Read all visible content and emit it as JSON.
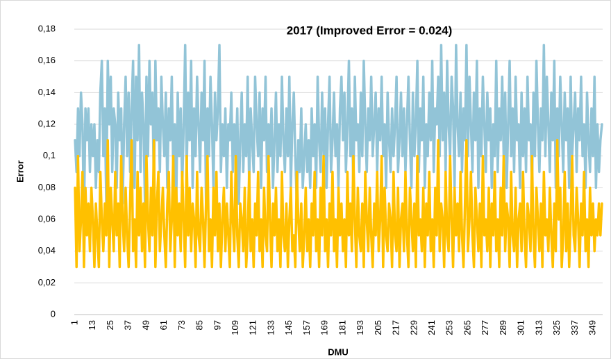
{
  "chart_data": {
    "type": "line",
    "title": "2017 (Improved Error = 0.024)",
    "x_label": "DMU",
    "y_label": "Error",
    "ylim": [
      0,
      0.18
    ],
    "yticks": [
      0,
      {
        "value": 0.02,
        "label": "0,02"
      },
      {
        "value": 0.04,
        "label": "0,04"
      },
      {
        "value": 0.06,
        "label": "0,06"
      },
      {
        "value": 0.08,
        "label": "0,08"
      },
      {
        "value": 0.1,
        "label": "0,1"
      },
      {
        "value": 0.12,
        "label": "0,12"
      },
      {
        "value": 0.14,
        "label": "0,14"
      },
      {
        "value": 0.16,
        "label": "0,16"
      },
      {
        "value": 0.18,
        "label": "0,18"
      }
    ],
    "grid": true,
    "categories": [
      1,
      null,
      null,
      null,
      null,
      null,
      null,
      null,
      null,
      null,
      null,
      null,
      13,
      null,
      null,
      null,
      null,
      null,
      null,
      null,
      null,
      null,
      null,
      null,
      25,
      null,
      null,
      null,
      null,
      null,
      null,
      null,
      null,
      null,
      null,
      null,
      37,
      null,
      null,
      null,
      null,
      null,
      null,
      null,
      null,
      null,
      null,
      null,
      49,
      null,
      null,
      null,
      null,
      null,
      null,
      null,
      null,
      null,
      null,
      null,
      61,
      null,
      null,
      null,
      null,
      null,
      null,
      null,
      null,
      null,
      null,
      null,
      73,
      null,
      null,
      null,
      null,
      null,
      null,
      null,
      null,
      null,
      null,
      null,
      85,
      null,
      null,
      null,
      null,
      null,
      null,
      null,
      null,
      null,
      null,
      null,
      97,
      null,
      null,
      null,
      null,
      null,
      null,
      null,
      null,
      null,
      null,
      null,
      109,
      null,
      null,
      null,
      null,
      null,
      null,
      null,
      null,
      null,
      null,
      null,
      121,
      null,
      null,
      null,
      null,
      null,
      null,
      null,
      null,
      null,
      null,
      null,
      133,
      null,
      null,
      null,
      null,
      null,
      null,
      null,
      null,
      null,
      null,
      null,
      145,
      null,
      null,
      null,
      null,
      null,
      null,
      null,
      null,
      null,
      null,
      null,
      157,
      null,
      null,
      null,
      null,
      null,
      null,
      null,
      null,
      null,
      null,
      null,
      169,
      null,
      null,
      null,
      null,
      null,
      null,
      null,
      null,
      null,
      null,
      null,
      181,
      null,
      null,
      null,
      null,
      null,
      null,
      null,
      null,
      null,
      null,
      null,
      193,
      null,
      null,
      null,
      null,
      null,
      null,
      null,
      null,
      null,
      null,
      null,
      205,
      null,
      null,
      null,
      null,
      null,
      null,
      null,
      null,
      null,
      null,
      null,
      217,
      null,
      null,
      null,
      null,
      null,
      null,
      null,
      null,
      null,
      null,
      null,
      229,
      null,
      null,
      null,
      null,
      null,
      null,
      null,
      null,
      null,
      null,
      null,
      241,
      null,
      null,
      null,
      null,
      null,
      null,
      null,
      null,
      null,
      null,
      null,
      253,
      null,
      null,
      null,
      null,
      null,
      null,
      null,
      null,
      null,
      null,
      null,
      265,
      null,
      null,
      null,
      null,
      null,
      null,
      null,
      null,
      null,
      null,
      null,
      277,
      null,
      null,
      null,
      null,
      null,
      null,
      null,
      null,
      null,
      null,
      null,
      289,
      null,
      null,
      null,
      null,
      null,
      null,
      null,
      null,
      null,
      null,
      null,
      301,
      null,
      null,
      null,
      null,
      null,
      null,
      null,
      null,
      null,
      null,
      null,
      313,
      null,
      null,
      null,
      null,
      null,
      null,
      null,
      null,
      null,
      null,
      null,
      325,
      null,
      null,
      null,
      null,
      null,
      null,
      null,
      null,
      null,
      null,
      null,
      337,
      null,
      null,
      null,
      null,
      null,
      null,
      null,
      null,
      null,
      null,
      null,
      349,
      null,
      null,
      null,
      null,
      null,
      null
    ],
    "series": [
      {
        "color": "#92c4d7",
        "values": [
          0.11,
          0.09,
          0.13,
          0.1,
          0.14,
          0.12,
          0.06,
          0.13,
          0.11,
          0.13,
          0.09,
          0.12,
          0.1,
          0.12,
          0.08,
          0.11,
          0.09,
          0.14,
          0.16,
          0.1,
          0.13,
          0.07,
          0.16,
          0.12,
          0.15,
          0.09,
          0.13,
          0.12,
          0.08,
          0.14,
          0.11,
          0.13,
          0.07,
          0.12,
          0.15,
          0.1,
          0.14,
          0.09,
          0.13,
          0.16,
          0.08,
          0.15,
          0.11,
          0.17,
          0.09,
          0.14,
          0.12,
          0.07,
          0.15,
          0.1,
          0.16,
          0.12,
          0.14,
          0.08,
          0.16,
          0.11,
          0.13,
          0.09,
          0.15,
          0.12,
          0.1,
          0.14,
          0.08,
          0.13,
          0.11,
          0.15,
          0.09,
          0.12,
          0.07,
          0.14,
          0.1,
          0.13,
          0.08,
          0.12,
          0.17,
          0.09,
          0.14,
          0.11,
          0.16,
          0.08,
          0.13,
          0.1,
          0.15,
          0.12,
          0.09,
          0.14,
          0.11,
          0.16,
          0.07,
          0.13,
          0.1,
          0.15,
          0.12,
          0.08,
          0.14,
          0.11,
          0.13,
          0.17,
          0.09,
          0.12,
          0.1,
          0.13,
          0.08,
          0.12,
          0.11,
          0.14,
          0.09,
          0.12,
          0.1,
          0.13,
          0.07,
          0.11,
          0.14,
          0.09,
          0.12,
          0.1,
          0.15,
          0.08,
          0.13,
          0.11,
          0.09,
          0.15,
          0.12,
          0.1,
          0.14,
          0.08,
          0.13,
          0.11,
          0.15,
          0.09,
          0.12,
          0.1,
          0.13,
          0.08,
          0.11,
          0.14,
          0.09,
          0.12,
          0.1,
          0.15,
          0.11,
          0.09,
          0.13,
          0.1,
          0.15,
          0.08,
          0.12,
          0.14,
          0.1,
          0.07,
          0.11,
          0.09,
          0.13,
          0.08,
          0.1,
          0.12,
          0.09,
          0.11,
          0.08,
          0.13,
          0.1,
          0.12,
          0.08,
          0.15,
          0.11,
          0.09,
          0.14,
          0.1,
          0.13,
          0.08,
          0.12,
          0.15,
          0.09,
          0.11,
          0.14,
          0.1,
          0.12,
          0.08,
          0.13,
          0.15,
          0.11,
          0.14,
          0.09,
          0.12,
          0.16,
          0.1,
          0.13,
          0.08,
          0.15,
          0.11,
          0.12,
          0.09,
          0.14,
          0.1,
          0.16,
          0.12,
          0.09,
          0.13,
          0.11,
          0.15,
          0.1,
          0.12,
          0.14,
          0.09,
          0.13,
          0.11,
          0.15,
          0.1,
          0.12,
          0.08,
          0.14,
          0.11,
          0.09,
          0.13,
          0.1,
          0.12,
          0.15,
          0.09,
          0.11,
          0.14,
          0.1,
          0.13,
          0.09,
          0.12,
          0.15,
          0.11,
          0.08,
          0.14,
          0.1,
          0.12,
          0.16,
          0.09,
          0.13,
          0.11,
          0.15,
          0.08,
          0.12,
          0.1,
          0.14,
          0.11,
          0.16,
          0.09,
          0.13,
          0.12,
          0.15,
          0.1,
          0.17,
          0.11,
          0.14,
          0.09,
          0.16,
          0.12,
          0.1,
          0.15,
          0.13,
          0.08,
          0.17,
          0.12,
          0.1,
          0.14,
          0.09,
          0.13,
          0.11,
          0.17,
          0.1,
          0.15,
          0.12,
          0.09,
          0.14,
          0.11,
          0.16,
          0.08,
          0.13,
          0.1,
          0.15,
          0.12,
          0.09,
          0.14,
          0.11,
          0.13,
          0.08,
          0.12,
          0.1,
          0.16,
          0.09,
          0.13,
          0.11,
          0.15,
          0.1,
          0.14,
          0.08,
          0.12,
          0.16,
          0.1,
          0.13,
          0.09,
          0.15,
          0.11,
          0.12,
          0.08,
          0.14,
          0.1,
          0.13,
          0.09,
          0.15,
          0.11,
          0.12,
          0.08,
          0.14,
          0.1,
          0.16,
          0.12,
          0.09,
          0.13,
          0.11,
          0.17,
          0.1,
          0.15,
          0.12,
          0.09,
          0.14,
          0.11,
          0.16,
          0.08,
          0.13,
          0.1,
          0.15,
          0.12,
          0.09,
          0.14,
          0.11,
          0.13,
          0.08,
          0.15,
          0.1,
          0.12,
          0.14,
          0.09,
          0.13,
          0.11,
          0.15,
          0.1,
          0.12,
          0.08,
          0.14,
          0.11,
          0.09,
          0.13,
          0.1,
          0.15,
          0.08,
          0.12,
          0.09,
          0.11,
          0.12
        ]
      },
      {
        "color": "#ffc000",
        "values": [
          0.08,
          0.03,
          0.1,
          0.04,
          0.06,
          0.09,
          0.03,
          0.08,
          0.05,
          0.07,
          0.04,
          0.08,
          0.06,
          0.03,
          0.07,
          0.05,
          0.03,
          0.09,
          0.06,
          0.04,
          0.07,
          0.05,
          0.11,
          0.03,
          0.08,
          0.06,
          0.04,
          0.09,
          0.05,
          0.07,
          0.03,
          0.1,
          0.06,
          0.04,
          0.08,
          0.05,
          0.03,
          0.07,
          0.11,
          0.04,
          0.06,
          0.03,
          0.09,
          0.05,
          0.08,
          0.04,
          0.07,
          0.03,
          0.1,
          0.06,
          0.04,
          0.08,
          0.05,
          0.11,
          0.03,
          0.07,
          0.09,
          0.04,
          0.06,
          0.08,
          0.05,
          0.03,
          0.07,
          0.09,
          0.04,
          0.06,
          0.1,
          0.03,
          0.08,
          0.05,
          0.07,
          0.04,
          0.09,
          0.06,
          0.03,
          0.1,
          0.05,
          0.08,
          0.04,
          0.07,
          0.06,
          0.03,
          0.09,
          0.05,
          0.04,
          0.08,
          0.06,
          0.03,
          0.07,
          0.1,
          0.04,
          0.06,
          0.03,
          0.08,
          0.05,
          0.09,
          0.04,
          0.07,
          0.03,
          0.06,
          0.08,
          0.04,
          0.07,
          0.05,
          0.03,
          0.09,
          0.06,
          0.04,
          0.1,
          0.05,
          0.03,
          0.07,
          0.06,
          0.04,
          0.08,
          0.03,
          0.05,
          0.09,
          0.04,
          0.06,
          0.03,
          0.07,
          0.05,
          0.09,
          0.04,
          0.06,
          0.03,
          0.08,
          0.05,
          0.04,
          0.1,
          0.06,
          0.03,
          0.07,
          0.05,
          0.08,
          0.04,
          0.06,
          0.03,
          0.09,
          0.05,
          0.04,
          0.07,
          0.03,
          0.06,
          0.08,
          0.04,
          0.05,
          0.03,
          0.09,
          0.06,
          0.04,
          0.07,
          0.03,
          0.05,
          0.08,
          0.04,
          0.06,
          0.03,
          0.07,
          0.05,
          0.09,
          0.04,
          0.06,
          0.03,
          0.08,
          0.05,
          0.1,
          0.04,
          0.06,
          0.03,
          0.07,
          0.05,
          0.09,
          0.04,
          0.06,
          0.03,
          0.08,
          0.05,
          0.07,
          0.04,
          0.06,
          0.03,
          0.09,
          0.05,
          0.07,
          0.04,
          0.1,
          0.06,
          0.03,
          0.08,
          0.05,
          0.04,
          0.07,
          0.03,
          0.09,
          0.06,
          0.04,
          0.08,
          0.05,
          0.03,
          0.07,
          0.05,
          0.09,
          0.04,
          0.06,
          0.1,
          0.03,
          0.08,
          0.05,
          0.04,
          0.07,
          0.06,
          0.03,
          0.09,
          0.05,
          0.04,
          0.08,
          0.03,
          0.06,
          0.07,
          0.04,
          0.09,
          0.05,
          0.03,
          0.08,
          0.06,
          0.04,
          0.07,
          0.03,
          0.1,
          0.05,
          0.06,
          0.04,
          0.08,
          0.03,
          0.07,
          0.05,
          0.09,
          0.04,
          0.06,
          0.03,
          0.08,
          0.05,
          0.11,
          0.04,
          0.07,
          0.06,
          0.03,
          0.09,
          0.05,
          0.04,
          0.1,
          0.06,
          0.03,
          0.08,
          0.05,
          0.07,
          0.04,
          0.09,
          0.05,
          0.03,
          0.07,
          0.11,
          0.04,
          0.06,
          0.09,
          0.05,
          0.03,
          0.08,
          0.06,
          0.04,
          0.07,
          0.03,
          0.1,
          0.05,
          0.06,
          0.04,
          0.08,
          0.03,
          0.07,
          0.05,
          0.09,
          0.04,
          0.06,
          0.03,
          0.08,
          0.05,
          0.1,
          0.04,
          0.07,
          0.06,
          0.03,
          0.09,
          0.05,
          0.04,
          0.08,
          0.03,
          0.06,
          0.07,
          0.04,
          0.09,
          0.05,
          0.03,
          0.07,
          0.06,
          0.04,
          0.1,
          0.05,
          0.03,
          0.08,
          0.06,
          0.04,
          0.07,
          0.03,
          0.09,
          0.05,
          0.06,
          0.04,
          0.08,
          0.05,
          0.03,
          0.07,
          0.04,
          0.11,
          0.06,
          0.08,
          0.03,
          0.05,
          0.09,
          0.04,
          0.07,
          0.03,
          0.06,
          0.1,
          0.05,
          0.04,
          0.08,
          0.06,
          0.03,
          0.07,
          0.05,
          0.09,
          0.04,
          0.06,
          0.03,
          0.08,
          0.05,
          0.07,
          0.04,
          0.06,
          0.05,
          0.07,
          0.05,
          0.07
        ]
      }
    ]
  }
}
